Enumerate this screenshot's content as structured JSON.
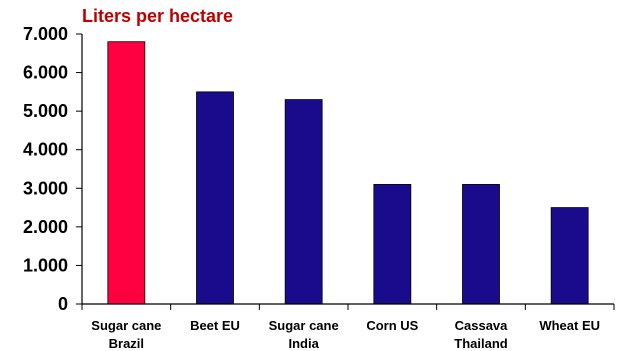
{
  "chart_data": {
    "type": "bar",
    "title": "Liters per hectare",
    "categories": [
      [
        "Sugar cane",
        "Brazil"
      ],
      [
        "Beet EU"
      ],
      [
        "Sugar cane",
        "India"
      ],
      [
        "Corn US"
      ],
      [
        "Cassava",
        "Thailand"
      ],
      [
        "Wheat EU"
      ]
    ],
    "values": [
      6800,
      5500,
      5300,
      3100,
      3100,
      2500
    ],
    "ylim": [
      0,
      7000
    ],
    "yticks": [
      0,
      1000,
      2000,
      3000,
      4000,
      5000,
      6000,
      7000
    ],
    "ytick_labels": [
      "0",
      "1.000",
      "2.000",
      "3.000",
      "4.000",
      "5.000",
      "6.000",
      "7.000"
    ],
    "xlabel": "",
    "ylabel": "",
    "grid": false,
    "colors": {
      "title": "#c00000",
      "highlight_bar": "#ff0040",
      "bar": "#1a0a8c",
      "axis": "#000000"
    }
  }
}
